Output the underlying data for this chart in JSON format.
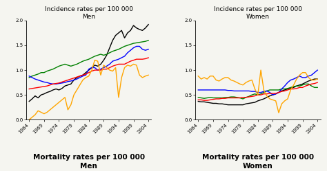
{
  "years": [
    1964,
    1965,
    1966,
    1967,
    1968,
    1969,
    1970,
    1971,
    1972,
    1973,
    1974,
    1975,
    1976,
    1977,
    1978,
    1979,
    1980,
    1981,
    1982,
    1983,
    1984,
    1985,
    1986,
    1987,
    1988,
    1989,
    1990,
    1991,
    1992,
    1993,
    1994,
    1995,
    1996,
    1997,
    1998,
    1999,
    2000,
    2001,
    2002,
    2003,
    2004
  ],
  "men_incidence": {
    "black": [
      0.37,
      0.42,
      0.48,
      0.44,
      0.5,
      0.52,
      0.55,
      0.57,
      0.6,
      0.62,
      0.6,
      0.63,
      0.68,
      0.7,
      0.72,
      0.8,
      0.85,
      0.88,
      0.9,
      0.95,
      1.0,
      1.05,
      1.1,
      1.08,
      1.12,
      1.2,
      1.3,
      1.45,
      1.6,
      1.7,
      1.75,
      1.8,
      1.65,
      1.75,
      1.8,
      1.9,
      1.85,
      1.82,
      1.8,
      1.85,
      1.92
    ],
    "green": [
      0.85,
      0.88,
      0.9,
      0.92,
      0.95,
      0.95,
      0.98,
      1.0,
      1.02,
      1.05,
      1.08,
      1.1,
      1.12,
      1.1,
      1.08,
      1.1,
      1.12,
      1.15,
      1.18,
      1.2,
      1.22,
      1.25,
      1.28,
      1.3,
      1.32,
      1.3,
      1.32,
      1.35,
      1.38,
      1.4,
      1.42,
      1.45,
      1.48,
      1.5,
      1.52,
      1.54,
      1.55,
      1.56,
      1.57,
      1.58,
      1.6
    ],
    "blue": [
      0.88,
      0.85,
      0.82,
      0.8,
      0.78,
      0.76,
      0.75,
      0.73,
      0.72,
      0.72,
      0.73,
      0.74,
      0.75,
      0.77,
      0.78,
      0.8,
      0.82,
      0.85,
      0.88,
      0.9,
      1.02,
      1.05,
      1.05,
      1.0,
      1.02,
      1.05,
      1.08,
      1.12,
      1.18,
      1.2,
      1.22,
      1.25,
      1.28,
      1.35,
      1.4,
      1.45,
      1.48,
      1.48,
      1.42,
      1.4,
      1.42
    ],
    "red": [
      0.62,
      0.63,
      0.64,
      0.65,
      0.66,
      0.67,
      0.68,
      0.7,
      0.72,
      0.73,
      0.74,
      0.76,
      0.78,
      0.8,
      0.82,
      0.84,
      0.86,
      0.88,
      0.9,
      0.92,
      0.95,
      0.98,
      1.0,
      1.0,
      1.0,
      1.02,
      1.02,
      1.05,
      1.08,
      1.1,
      1.12,
      1.12,
      1.12,
      1.15,
      1.18,
      1.2,
      1.22,
      1.22,
      1.22,
      1.23,
      1.25
    ],
    "orange": [
      0.0,
      0.05,
      0.1,
      0.18,
      0.15,
      0.12,
      0.15,
      0.2,
      0.25,
      0.3,
      0.35,
      0.4,
      0.45,
      0.2,
      0.3,
      0.5,
      0.6,
      0.7,
      0.8,
      0.85,
      0.88,
      1.0,
      1.2,
      1.18,
      0.9,
      1.1,
      1.05,
      1.0,
      0.98,
      1.05,
      0.45,
      0.85,
      1.05,
      1.1,
      1.08,
      1.12,
      1.1,
      0.9,
      0.85,
      0.88,
      0.9
    ]
  },
  "women_incidence": {
    "black": [
      0.37,
      0.36,
      0.36,
      0.35,
      0.34,
      0.33,
      0.33,
      0.32,
      0.32,
      0.31,
      0.3,
      0.3,
      0.3,
      0.3,
      0.3,
      0.3,
      0.32,
      0.33,
      0.34,
      0.35,
      0.38,
      0.4,
      0.42,
      0.45,
      0.48,
      0.5,
      0.52,
      0.55,
      0.58,
      0.6,
      0.62,
      0.64,
      0.65,
      0.68,
      0.7,
      0.72,
      0.75,
      0.78,
      0.8,
      0.82,
      0.82
    ],
    "green": [
      0.45,
      0.44,
      0.43,
      0.44,
      0.45,
      0.44,
      0.44,
      0.44,
      0.44,
      0.45,
      0.45,
      0.46,
      0.46,
      0.45,
      0.44,
      0.42,
      0.45,
      0.47,
      0.5,
      0.52,
      0.5,
      0.52,
      0.55,
      0.58,
      0.6,
      0.6,
      0.6,
      0.6,
      0.62,
      0.62,
      0.63,
      0.65,
      0.67,
      0.68,
      0.68,
      0.7,
      0.72,
      0.72,
      0.68,
      0.65,
      0.65
    ],
    "blue": [
      0.6,
      0.6,
      0.6,
      0.6,
      0.6,
      0.6,
      0.6,
      0.6,
      0.6,
      0.6,
      0.59,
      0.59,
      0.58,
      0.58,
      0.58,
      0.58,
      0.58,
      0.58,
      0.57,
      0.57,
      0.55,
      0.55,
      0.57,
      0.58,
      0.55,
      0.5,
      0.52,
      0.55,
      0.62,
      0.68,
      0.75,
      0.8,
      0.82,
      0.85,
      0.88,
      0.85,
      0.85,
      0.88,
      0.9,
      0.95,
      1.0
    ],
    "red": [
      0.4,
      0.4,
      0.39,
      0.39,
      0.4,
      0.41,
      0.42,
      0.42,
      0.43,
      0.43,
      0.44,
      0.44,
      0.44,
      0.44,
      0.44,
      0.45,
      0.45,
      0.46,
      0.47,
      0.48,
      0.5,
      0.5,
      0.52,
      0.52,
      0.53,
      0.53,
      0.53,
      0.55,
      0.57,
      0.58,
      0.6,
      0.62,
      0.62,
      0.63,
      0.65,
      0.65,
      0.68,
      0.7,
      0.72,
      0.73,
      0.75
    ],
    "orange": [
      0.88,
      0.82,
      0.85,
      0.82,
      0.88,
      0.88,
      0.8,
      0.78,
      0.82,
      0.85,
      0.85,
      0.8,
      0.78,
      0.75,
      0.72,
      0.7,
      0.75,
      0.78,
      0.8,
      0.62,
      0.5,
      1.0,
      0.6,
      0.48,
      0.42,
      0.4,
      0.38,
      0.14,
      0.32,
      0.38,
      0.42,
      0.6,
      0.7,
      0.82,
      0.9,
      0.95,
      0.95,
      0.85,
      0.8,
      0.8,
      0.82
    ]
  },
  "title_men": "Incidence rates per 100 000\nMen",
  "title_women": "Incidence rates per 100 000\nWomen",
  "xlabel_men": "Mortality rates per 100 000\nMen",
  "xlabel_women": "Mortality rates per 100 000\nWomen",
  "xticks": [
    1964,
    1969,
    1974,
    1979,
    1984,
    1989,
    1994,
    1999,
    2004
  ],
  "xlim": [
    1963,
    2005
  ],
  "ylim": [
    0.0,
    2.0
  ],
  "yticks": [
    0.0,
    0.5,
    1.0,
    1.5,
    2.0
  ],
  "colors": [
    "black",
    "green",
    "blue",
    "red",
    "orange"
  ],
  "linewidth": 1.0,
  "bg_color": "#f5f5f0",
  "title_fontsize": 6.5,
  "tick_fontsize": 5.0,
  "xlabel_fontsize": 7.5
}
